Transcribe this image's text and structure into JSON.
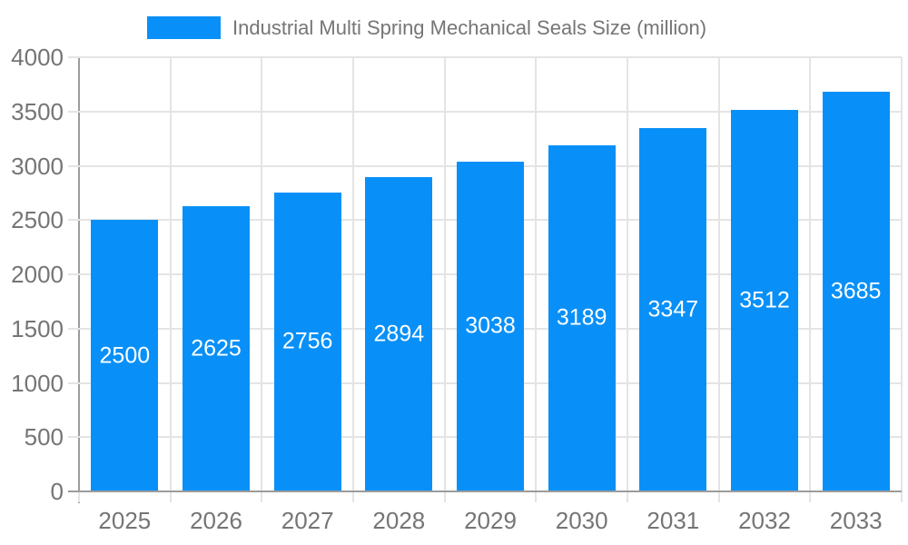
{
  "legend": {
    "label": "Industrial Multi Spring Mechanical Seals Size (million)"
  },
  "colors": {
    "bar": "#0890f8",
    "grid": "#e4e4e4",
    "axis": "#9c9c9c",
    "text": "#757575",
    "bar_label": "#ffffff",
    "background": "#ffffff"
  },
  "chart_data": {
    "type": "bar",
    "title": "Industrial Multi Spring Mechanical Seals Size (million)",
    "series_name": "Industrial Multi Spring Mechanical Seals Size (million)",
    "categories": [
      "2025",
      "2026",
      "2027",
      "2028",
      "2029",
      "2030",
      "2031",
      "2032",
      "2033"
    ],
    "values": [
      2500,
      2625,
      2756,
      2894,
      3038,
      3189,
      3347,
      3512,
      3685
    ],
    "bar_labels": [
      "2500",
      "2625",
      "2756",
      "2894",
      "3038",
      "3189",
      "3347",
      "3512",
      "3685"
    ],
    "xlabel": "",
    "ylabel": "",
    "ylim": [
      0,
      4000
    ],
    "yticks": [
      0,
      500,
      1000,
      1500,
      2000,
      2500,
      3000,
      3500,
      4000
    ],
    "grid": true,
    "legend_position": "top-center",
    "bar_label_position": "inside-middle"
  }
}
